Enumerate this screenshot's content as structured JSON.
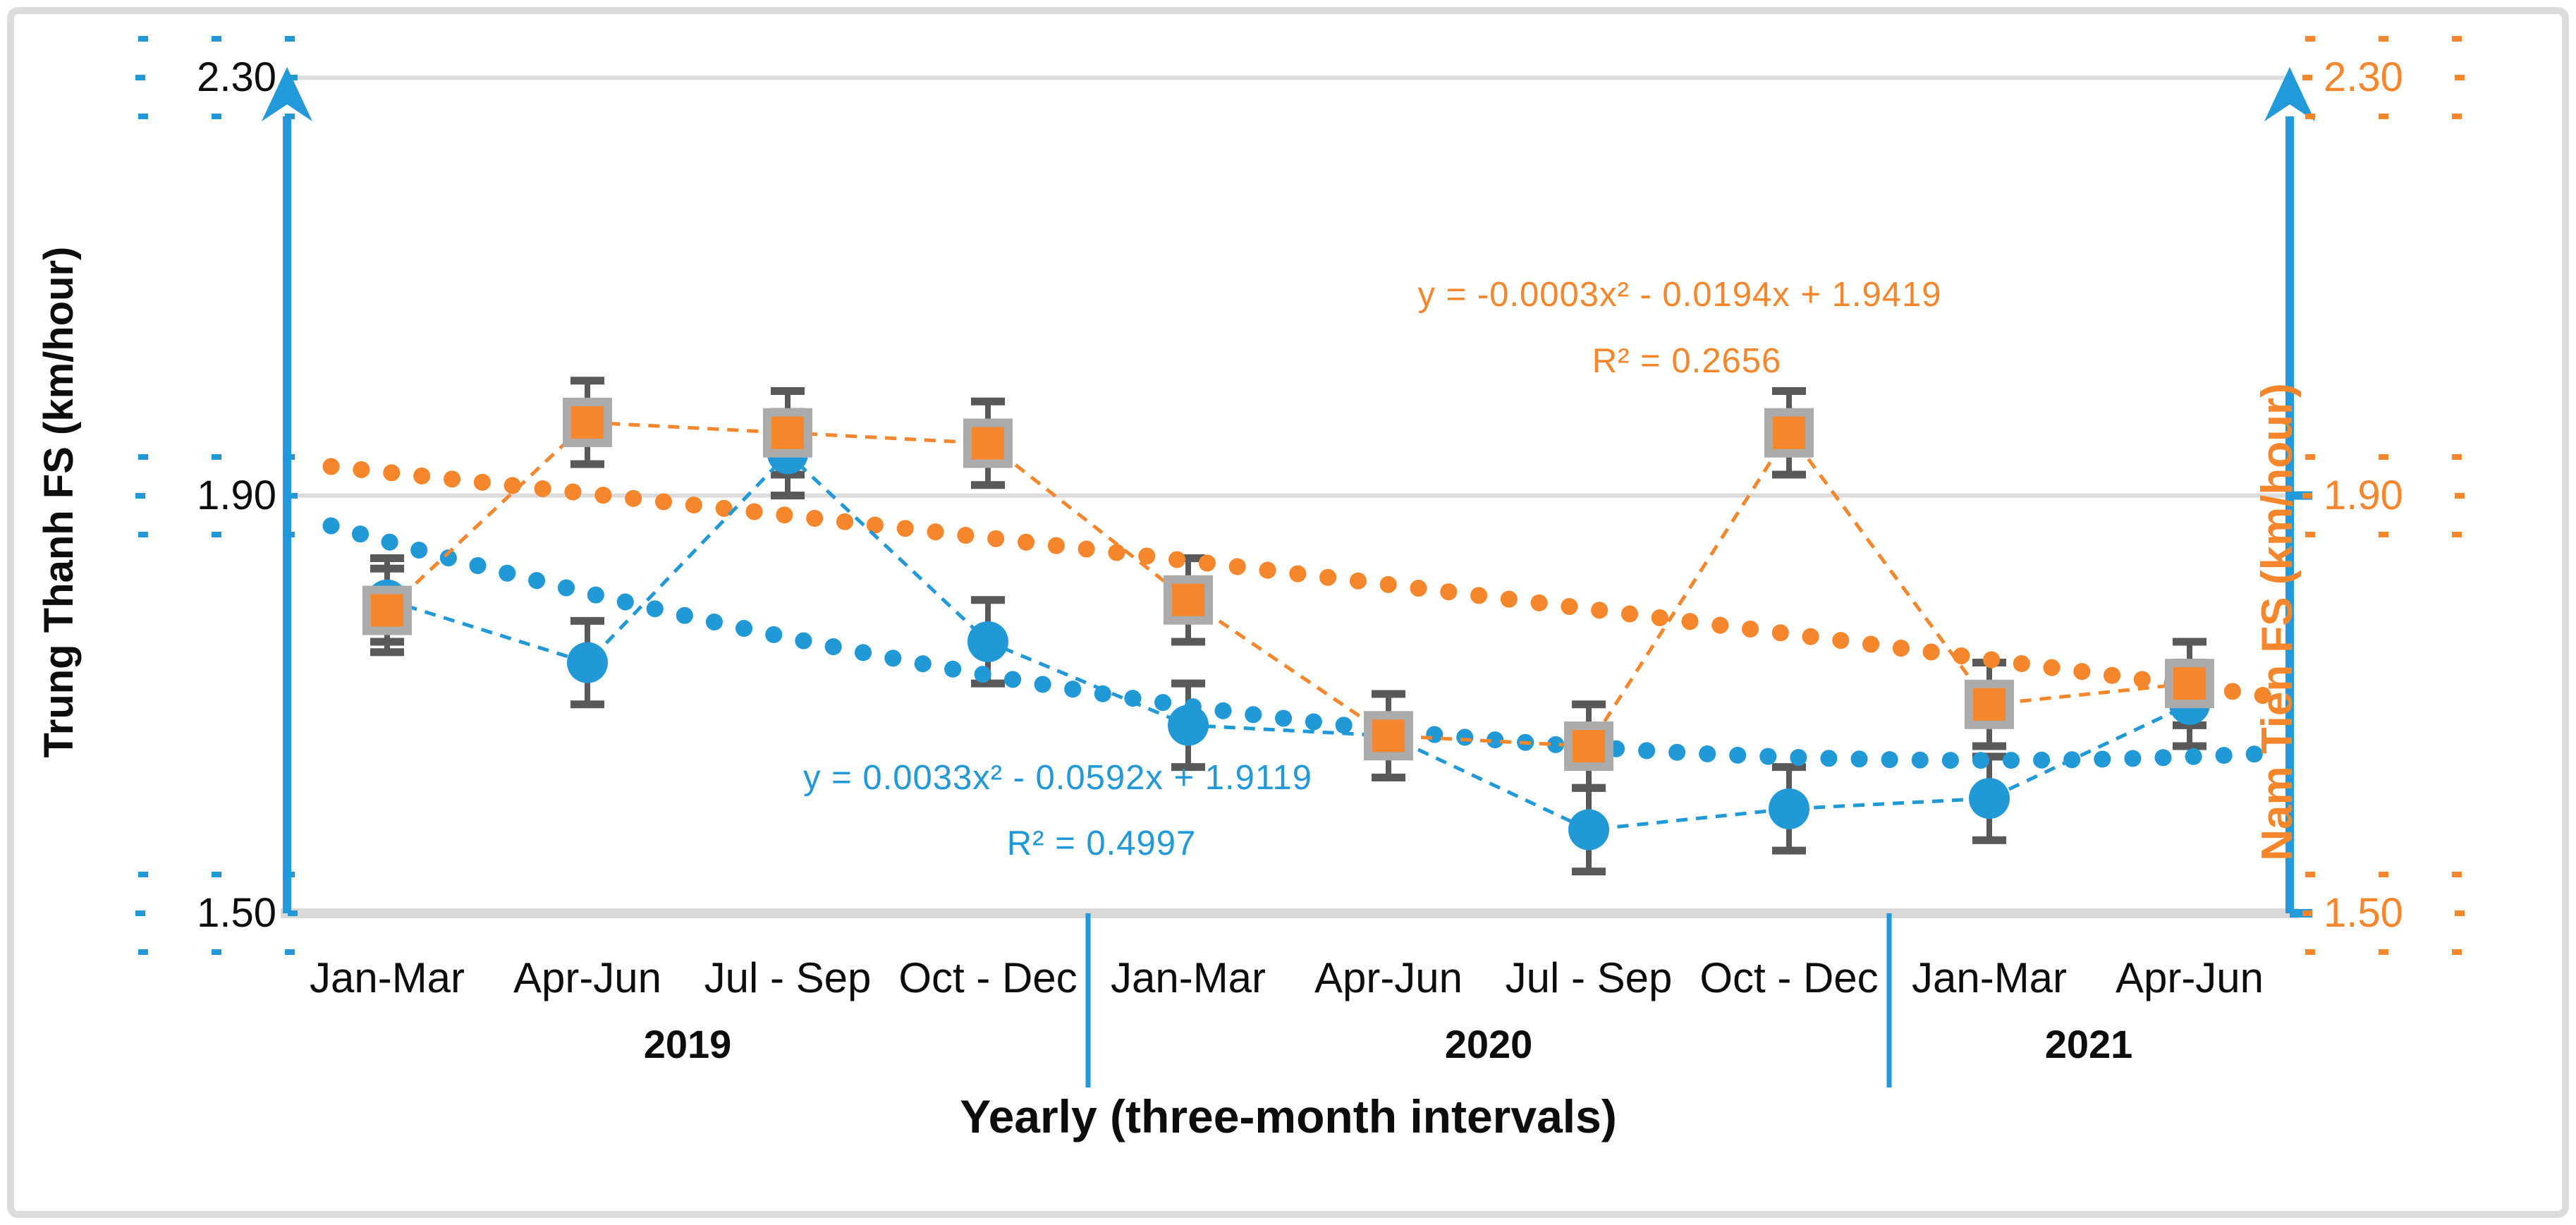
{
  "figure": {
    "background": "#ffffff",
    "frame_color": "#dcdcdc"
  },
  "colors": {
    "series_blue": "#2199d6",
    "series_orange": "#f6862b",
    "axis_line_blue": "#2299d8",
    "marker_border_gray": "#ababab",
    "error_bar_gray": "#595959",
    "gridline_gray": "#dcdcdc",
    "x_axis_line_gray": "#d9d9d9",
    "text_black": "#0d0d0d"
  },
  "y_axis_left": {
    "title": "Trung Thanh FS (km/hour)",
    "tick_labels": [
      "2.30",
      "1.90",
      "1.50"
    ],
    "handle_color": "#2199d6"
  },
  "y_axis_right": {
    "title": "Nam Tien FS (km/hour)",
    "tick_labels": [
      "2.30",
      "1.90",
      "1.50"
    ],
    "handle_color": "#f6862b"
  },
  "x_axis": {
    "title": "Yearly (three-month intervals)",
    "quarter_labels": [
      "Jan-Mar",
      "Apr-Jun",
      "Jul - Sep",
      "Oct - Dec",
      "Jan-Mar",
      "Apr-Jun",
      "Jul - Sep",
      "Oct - Dec",
      "Jan-Mar",
      "Apr-Jun"
    ],
    "year_labels": [
      "2019",
      "2020",
      "2021"
    ]
  },
  "equations": {
    "orange_line1": "y = -0.0003x² - 0.0194x + 1.9419",
    "orange_line2": "R² = 0.2656",
    "blue_line1": "y = 0.0033x² - 0.0592x + 1.9119",
    "blue_line2": "R² = 0.4997"
  },
  "chart_data": {
    "type": "line",
    "title": "",
    "xlabel": "Yearly (three-month intervals)",
    "ylabel_left": "Trung Thanh FS (km/hour)",
    "ylabel_right": "Nam Tien FS (km/hour)",
    "ylim": [
      1.5,
      2.3
    ],
    "yticks": [
      1.5,
      1.9,
      2.3
    ],
    "grid": true,
    "legend_position": "none",
    "categories": [
      "Jan-Mar 2019",
      "Apr-Jun 2019",
      "Jul-Sep 2019",
      "Oct-Dec 2019",
      "Jan-Mar 2020",
      "Apr-Jun 2020",
      "Jul-Sep 2020",
      "Oct-Dec 2020",
      "Jan-Mar 2021",
      "Apr-Jun 2021"
    ],
    "series": [
      {
        "name": "Trung Thanh FS",
        "axis": "left",
        "marker": "circle",
        "color": "#2199d6",
        "values": [
          1.8,
          1.74,
          1.94,
          1.76,
          1.68,
          1.67,
          1.58,
          1.6,
          1.61,
          1.7
        ],
        "error_bar": 0.04,
        "trendline": {
          "type": "polynomial",
          "order": 2,
          "coefficients": [
            0.0033,
            -0.0592,
            1.9119
          ],
          "equation": "y = 0.0033x² - 0.0592x + 1.9119",
          "r_squared": 0.4997
        }
      },
      {
        "name": "Nam Tien FS",
        "axis": "right",
        "marker": "square",
        "color": "#f6862b",
        "values": [
          1.79,
          1.97,
          1.96,
          1.95,
          1.8,
          1.67,
          1.66,
          1.96,
          1.7,
          1.72
        ],
        "error_bar": 0.04,
        "trendline": {
          "type": "polynomial",
          "order": 2,
          "coefficients": [
            -0.0003,
            -0.0194,
            1.9419
          ],
          "equation": "y = -0.0003x² - 0.0194x + 1.9419",
          "r_squared": 0.2656
        }
      }
    ]
  }
}
